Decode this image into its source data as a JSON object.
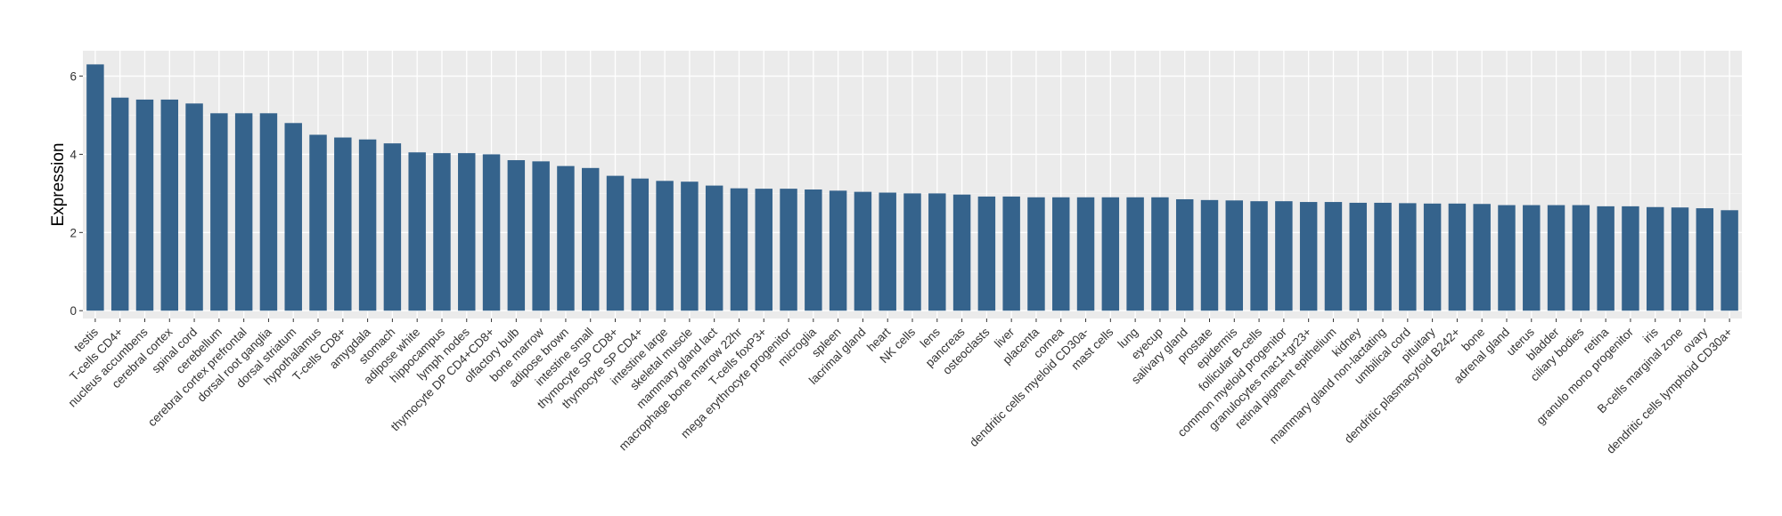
{
  "chart_data": {
    "type": "bar",
    "title": "",
    "xlabel": "",
    "ylabel": "Expression",
    "ylim": [
      -0.2,
      6.65
    ],
    "yticks": [
      0,
      2,
      4,
      6
    ],
    "grid": true,
    "legend": "none",
    "colors": {
      "bar": "#35638c",
      "panel": "#ebebeb",
      "grid_major": "#ffffff",
      "grid_minor": "#f5f5f5",
      "text": "#333333"
    },
    "categories": [
      "testis",
      "T-cells CD4+",
      "nucleus accumbens",
      "cerebral cortex",
      "spinal cord",
      "cerebellum",
      "cerebral cortex prefrontal",
      "dorsal root ganglia",
      "dorsal striatum",
      "hypothalamus",
      "T-cells CD8+",
      "amygdala",
      "stomach",
      "adipose white",
      "hippocampus",
      "lymph nodes",
      "thymocyte DP CD4+CD8+",
      "olfactory bulb",
      "bone marrow",
      "adipose brown",
      "intestine small",
      "thymocyte SP CD8+",
      "thymocyte SP CD4+",
      "intestine large",
      "skeletal muscle",
      "mammary gland  lact",
      "macrophage bone marrow 22hr",
      "T-cells foxP3+",
      "mega erythrocyte progenitor",
      "microglia",
      "spleen",
      "lacrimal gland",
      "heart",
      "NK cells",
      "lens",
      "pancreas",
      "osteoclasts",
      "liver",
      "placenta",
      "cornea",
      "dendritic cells myeloid CD30a-",
      "mast cells",
      "lung",
      "eyecup",
      "salivary gland",
      "prostate",
      "epidermis",
      "follicular B-cells",
      "common myeloid progenitor",
      "granulocytes mac1+gr23+",
      "retinal pigment epithelium",
      "kidney",
      "mammary gland non-lactating",
      "umbilical cord",
      "pituitary",
      "dendritic plasmacytoid B242+",
      "bone",
      "adrenal gland",
      "uterus",
      "bladder",
      "ciliary bodies",
      "retina",
      "granulo mono progenitor",
      "iris",
      "B-cells marginal zone",
      "ovary",
      "dendritic cells lymphoid CD30a+"
    ],
    "values": [
      6.3,
      5.45,
      5.4,
      5.4,
      5.3,
      5.05,
      5.05,
      5.05,
      4.8,
      4.5,
      4.43,
      4.38,
      4.28,
      4.05,
      4.03,
      4.03,
      4.0,
      3.85,
      3.82,
      3.7,
      3.65,
      3.45,
      3.38,
      3.32,
      3.3,
      3.2,
      3.13,
      3.12,
      3.12,
      3.1,
      3.07,
      3.04,
      3.02,
      3.0,
      3.0,
      2.97,
      2.92,
      2.92,
      2.9,
      2.9,
      2.9,
      2.9,
      2.9,
      2.9,
      2.85,
      2.83,
      2.82,
      2.8,
      2.8,
      2.78,
      2.78,
      2.76,
      2.76,
      2.75,
      2.74,
      2.74,
      2.73,
      2.7,
      2.7,
      2.7,
      2.7,
      2.67,
      2.67,
      2.65,
      2.64,
      2.62,
      2.57
    ]
  }
}
